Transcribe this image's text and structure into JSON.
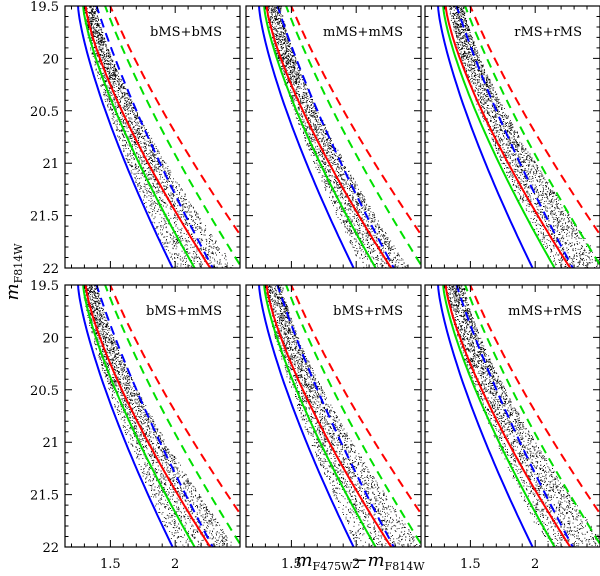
{
  "figure": {
    "xlabel_main": "m",
    "xlabel_sub": "F475W",
    "xlabel_dash": "−",
    "xlabel_main2": "m",
    "xlabel_sub2": "F814W",
    "ylabel_main": "m",
    "ylabel_sub": "F814W"
  },
  "chart_data": {
    "type": "scatter",
    "xlim": [
      1.15,
      2.5
    ],
    "ylim": [
      22.0,
      19.5
    ],
    "x_ticks": [
      1.5,
      2
    ],
    "x_tick_labels": [
      "1.5",
      "2"
    ],
    "y_ticks": [
      19.5,
      20,
      20.5,
      21,
      21.5,
      22
    ],
    "y_tick_labels": [
      "19.5",
      "20",
      "20.5",
      "21",
      "21.5",
      "22"
    ],
    "colors": {
      "blue": "#0000ff",
      "green": "#00e000",
      "red": "#ff0000",
      "points": "#000000"
    },
    "isochrones": {
      "blue": {
        "color_at_19_5": 1.25,
        "color_at_22": 1.98
      },
      "green": {
        "color_at_19_5": 1.29,
        "color_at_22": 2.15
      },
      "red": {
        "color_at_19_5": 1.31,
        "color_at_22": 2.27
      }
    },
    "binary_offset_dashed_lines": "q=1 binary sequences (dashed), 0.75 mag brighter",
    "panels": [
      {
        "label": "bMS+bMS",
        "row": 0,
        "col": 0,
        "cloud": {
          "min_color_at_19_5": 1.28,
          "max_color_at_19_5": 1.39,
          "min_color_at_22": 1.98,
          "max_color_at_22": 2.46
        }
      },
      {
        "label": "mMS+mMS",
        "row": 0,
        "col": 1,
        "cloud": {
          "min_color_at_19_5": 1.3,
          "max_color_at_19_5": 1.42,
          "min_color_at_22": 2.04,
          "max_color_at_22": 2.4
        }
      },
      {
        "label": "rMS+rMS",
        "row": 0,
        "col": 2,
        "cloud": {
          "min_color_at_19_5": 1.33,
          "max_color_at_19_5": 1.45,
          "min_color_at_22": 2.14,
          "max_color_at_22": 2.55
        }
      },
      {
        "label": "bMS+mMS",
        "row": 1,
        "col": 0,
        "cloud": {
          "min_color_at_19_5": 1.28,
          "max_color_at_19_5": 1.4,
          "min_color_at_22": 1.99,
          "max_color_at_22": 2.46
        }
      },
      {
        "label": "bMS+rMS",
        "row": 1,
        "col": 1,
        "cloud": {
          "min_color_at_19_5": 1.29,
          "max_color_at_19_5": 1.43,
          "min_color_at_22": 2.0,
          "max_color_at_22": 2.5
        }
      },
      {
        "label": "mMS+rMS",
        "row": 1,
        "col": 2,
        "cloud": {
          "min_color_at_19_5": 1.31,
          "max_color_at_19_5": 1.45,
          "min_color_at_22": 2.08,
          "max_color_at_22": 2.55
        }
      }
    ]
  }
}
